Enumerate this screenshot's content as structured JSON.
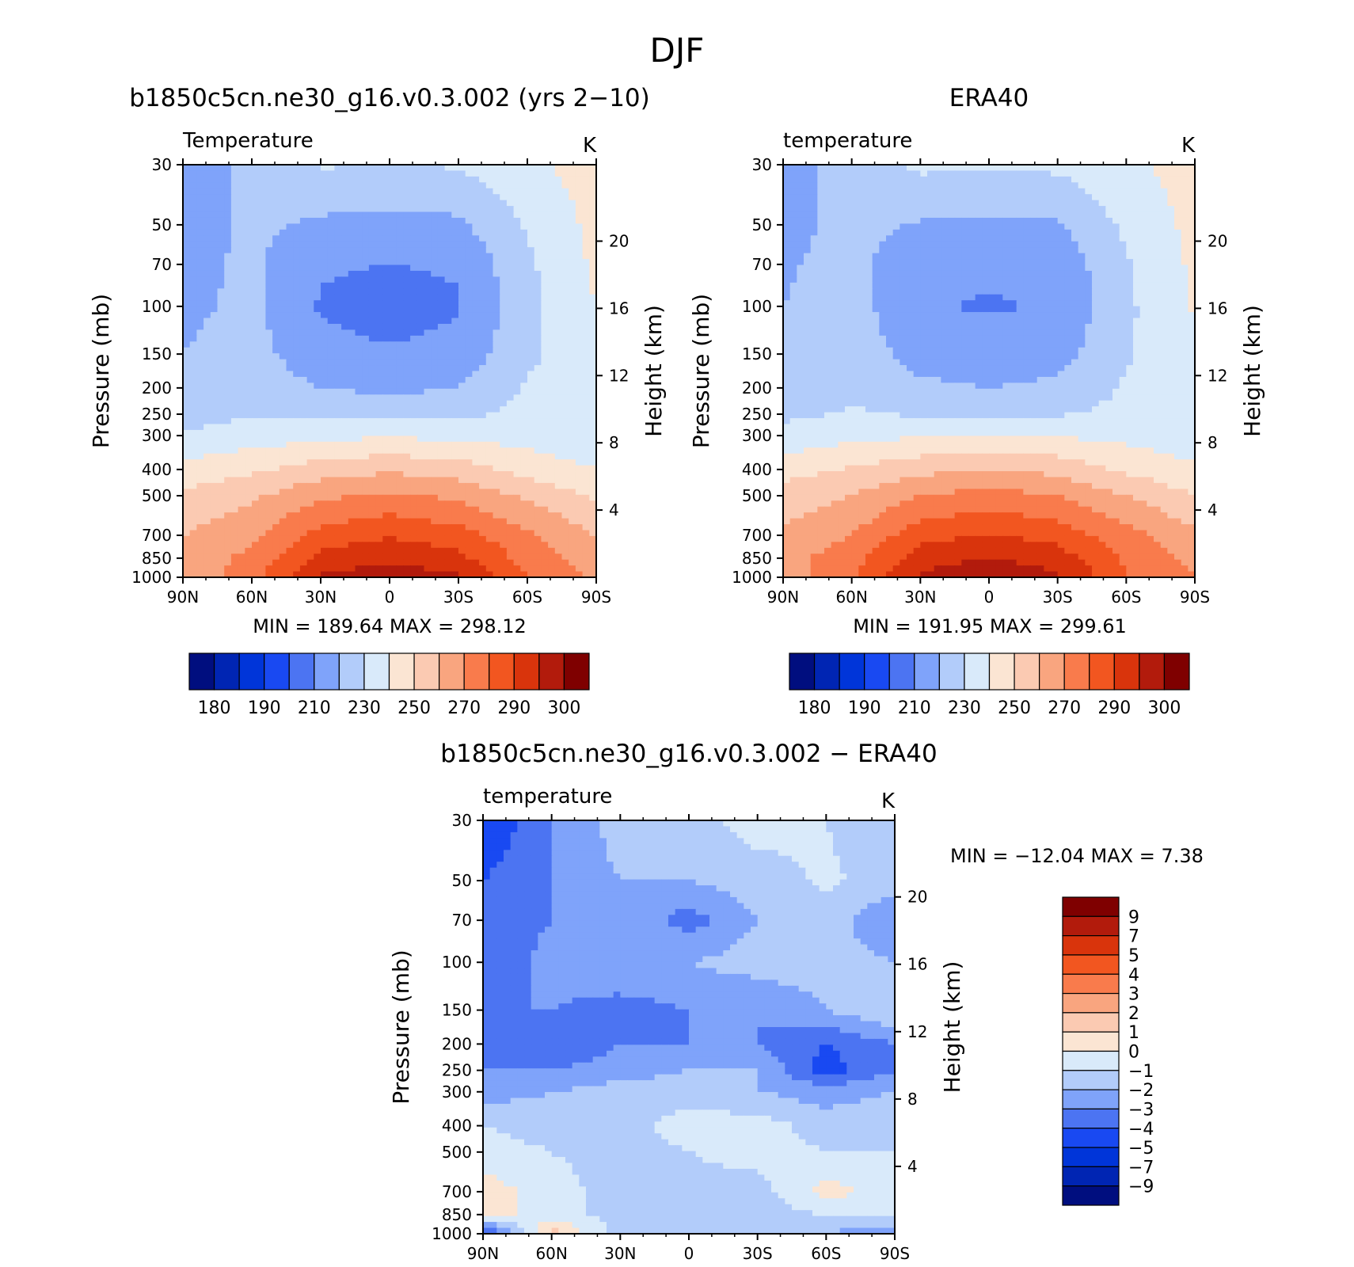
{
  "figure_title": "DJF",
  "level_colors": [
    "#000e7f",
    "#0025b3",
    "#0035d9",
    "#1949f2",
    "#4c74f2",
    "#7fa3fa",
    "#b2ccfa",
    "#d9eafa",
    "#fbe5d3",
    "#fbcab2",
    "#f9a57f",
    "#f97b4c",
    "#f25620",
    "#d9340c",
    "#b21b0c",
    "#7f0000"
  ],
  "chart_data": [
    {
      "type": "heatmap",
      "title": "b1850c5cn.ne30_g16.v0.3.002 (yrs 2−10)",
      "variable_label": "Temperature",
      "units": "K",
      "xlabel": "",
      "ylabel": "Pressure (mb)",
      "y2label": "Height (km)",
      "x_ticks": [
        "90N",
        "60N",
        "30N",
        "0",
        "30S",
        "60S",
        "90S"
      ],
      "y_ticks": [
        "30",
        "50",
        "70",
        "100",
        "150",
        "200",
        "250",
        "300",
        "400",
        "500",
        "700",
        "850",
        "1000"
      ],
      "y2_ticks": [
        "20",
        "16",
        "12",
        "8",
        "4"
      ],
      "lat": [
        90,
        60,
        30,
        0,
        -30,
        -60,
        -90
      ],
      "pressure": [
        30,
        50,
        70,
        100,
        150,
        200,
        250,
        300,
        400,
        500,
        700,
        850,
        1000
      ],
      "values": [
        [
          203,
          213,
          221,
          219,
          221,
          228,
          234
        ],
        [
          205,
          212,
          208,
          207,
          208,
          221,
          233
        ],
        [
          207,
          212,
          201,
          200,
          201,
          218,
          232
        ],
        [
          208,
          212,
          199,
          196,
          199,
          217,
          230
        ],
        [
          210,
          214,
          203,
          201,
          203,
          218,
          226
        ],
        [
          212,
          216,
          210,
          208,
          210,
          221,
          224
        ],
        [
          216,
          219,
          217,
          216,
          217,
          223,
          223
        ],
        [
          221,
          225,
          227,
          229,
          227,
          226,
          222
        ],
        [
          233,
          238,
          245,
          248,
          245,
          236,
          230
        ],
        [
          242,
          248,
          258,
          262,
          258,
          248,
          238
        ],
        [
          250,
          258,
          274,
          279,
          274,
          262,
          250
        ],
        [
          253,
          263,
          283,
          288,
          283,
          266,
          255
        ],
        [
          251,
          267,
          291,
          296,
          291,
          270,
          258
        ]
      ],
      "min_label": "MIN =  189.64   MAX =  298.12",
      "colorbar_labels": [
        "180",
        "190",
        "210",
        "230",
        "250",
        "270",
        "290",
        "300"
      ]
    },
    {
      "type": "heatmap",
      "title": "ERA40",
      "variable_label": "temperature",
      "units": "K",
      "xlabel": "",
      "ylabel": "Pressure (mb)",
      "y2label": "Height (km)",
      "x_ticks": [
        "90N",
        "60N",
        "30N",
        "0",
        "30S",
        "60S",
        "90S"
      ],
      "y_ticks": [
        "30",
        "50",
        "70",
        "100",
        "150",
        "200",
        "250",
        "300",
        "400",
        "500",
        "700",
        "850",
        "1000"
      ],
      "y2_ticks": [
        "20",
        "16",
        "12",
        "8",
        "4"
      ],
      "lat": [
        90,
        60,
        30,
        0,
        -30,
        -60,
        -90
      ],
      "pressure": [
        30,
        50,
        70,
        100,
        150,
        200,
        250,
        300,
        400,
        500,
        700,
        850,
        1000
      ],
      "values": [
        [
          206,
          214,
          222,
          221,
          222,
          228,
          234
        ],
        [
          207,
          213,
          209,
          208,
          209,
          222,
          233
        ],
        [
          209,
          213,
          203,
          202,
          203,
          219,
          232
        ],
        [
          210,
          214,
          201,
          199,
          201,
          218,
          231
        ],
        [
          212,
          216,
          206,
          204,
          206,
          219,
          227
        ],
        [
          214,
          218,
          212,
          210,
          212,
          221,
          225
        ],
        [
          218,
          221,
          219,
          218,
          219,
          223,
          224
        ],
        [
          223,
          227,
          229,
          231,
          229,
          227,
          223
        ],
        [
          236,
          241,
          247,
          250,
          247,
          238,
          232
        ],
        [
          244,
          250,
          260,
          264,
          260,
          250,
          240
        ],
        [
          252,
          260,
          276,
          281,
          276,
          264,
          252
        ],
        [
          256,
          266,
          285,
          290,
          285,
          268,
          257
        ],
        [
          254,
          268,
          292,
          298,
          292,
          271,
          260
        ]
      ],
      "min_label": "MIN =  191.95   MAX =  299.61",
      "colorbar_labels": [
        "180",
        "190",
        "210",
        "230",
        "250",
        "270",
        "290",
        "300"
      ]
    },
    {
      "type": "heatmap",
      "title": "b1850c5cn.ne30_g16.v0.3.002 − ERA40",
      "variable_label": "temperature",
      "units": "K",
      "xlabel": "",
      "ylabel": "Pressure (mb)",
      "y2label": "Height (km)",
      "x_ticks": [
        "90N",
        "60N",
        "30N",
        "0",
        "30S",
        "60S",
        "90S"
      ],
      "y_ticks": [
        "30",
        "50",
        "70",
        "100",
        "150",
        "200",
        "250",
        "300",
        "400",
        "500",
        "700",
        "850",
        "1000"
      ],
      "y2_ticks": [
        "20",
        "16",
        "12",
        "8",
        "4"
      ],
      "lat": [
        90,
        60,
        30,
        0,
        -30,
        -60,
        -90
      ],
      "pressure": [
        30,
        50,
        70,
        100,
        150,
        200,
        250,
        300,
        400,
        500,
        700,
        850,
        1000
      ],
      "values": [
        [
          -5,
          -3,
          -1.5,
          -1.5,
          -0.5,
          -1,
          -2
        ],
        [
          -4,
          -3,
          -2,
          -2,
          -1.5,
          -0.8,
          -1.5
        ],
        [
          -4,
          -3,
          -2,
          -3.5,
          -2,
          -1.5,
          -3
        ],
        [
          -4,
          -2.5,
          -2,
          -2,
          -1.5,
          -1.5,
          -2
        ],
        [
          -3,
          -3,
          -3.5,
          -3,
          -3,
          -2,
          -1
        ],
        [
          -4,
          -4,
          -3,
          -3,
          -3,
          -4,
          -3
        ],
        [
          -3,
          -3,
          -2.5,
          -2,
          -2,
          -4.5,
          -3
        ],
        [
          -2.5,
          -2,
          -1.5,
          -1.5,
          -2,
          -2.5,
          -2
        ],
        [
          -1,
          -1.5,
          -1.5,
          -0.5,
          -0.5,
          -1.5,
          -1
        ],
        [
          -0.5,
          -1,
          -1.5,
          -1,
          -0.5,
          -1,
          -1
        ],
        [
          0.5,
          -0.5,
          -1.5,
          -1.5,
          -1.5,
          0.5,
          -0.5
        ],
        [
          0.5,
          -0.5,
          -1.5,
          -2,
          -1.5,
          -1,
          -0.5
        ],
        [
          -5,
          1.5,
          -1.5,
          -1.5,
          -1.5,
          -2,
          -3
        ]
      ],
      "min_label": "MIN = −12.04    MAX =     7.38",
      "colorbar_labels": [
        "9",
        "7",
        "5",
        "4",
        "3",
        "2",
        "1",
        "0",
        "−1",
        "−2",
        "−3",
        "−4",
        "−5",
        "−7",
        "−9"
      ]
    }
  ]
}
